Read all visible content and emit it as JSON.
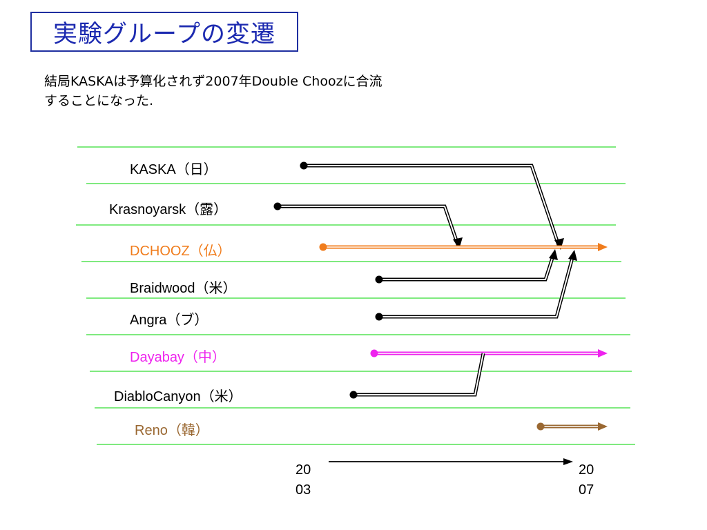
{
  "slide": {
    "title": "実験グループの変遷",
    "note_line1": "結局KASKAは予算化されず2007年Double Choozに合流",
    "note_line2": "することになった."
  },
  "experiments": [
    {
      "id": "kaska",
      "label": "KASKA（日）",
      "color": "#000000"
    },
    {
      "id": "krasnoyarsk",
      "label": "Krasnoyarsk（露）",
      "color": "#000000"
    },
    {
      "id": "dchooz",
      "label": "DCHOOZ（仏）",
      "color": "#f07c1c"
    },
    {
      "id": "braidwood",
      "label": "Braidwood（米）",
      "color": "#000000"
    },
    {
      "id": "angra",
      "label": "Angra（ブ）",
      "color": "#000000"
    },
    {
      "id": "dayabay",
      "label": "Dayabay（中）",
      "color": "#ee22ee"
    },
    {
      "id": "diablocanyon",
      "label": "DiabloCanyon（米）",
      "color": "#000000"
    },
    {
      "id": "reno",
      "label": "Reno（韓）",
      "color": "#9a6832"
    }
  ],
  "timeline": {
    "start_line1": "20",
    "start_line2": "03",
    "end_line1": "20",
    "end_line2": "07"
  },
  "colors": {
    "title": "#1c2ab0",
    "separator": "#33dd33",
    "black": "#000000"
  }
}
